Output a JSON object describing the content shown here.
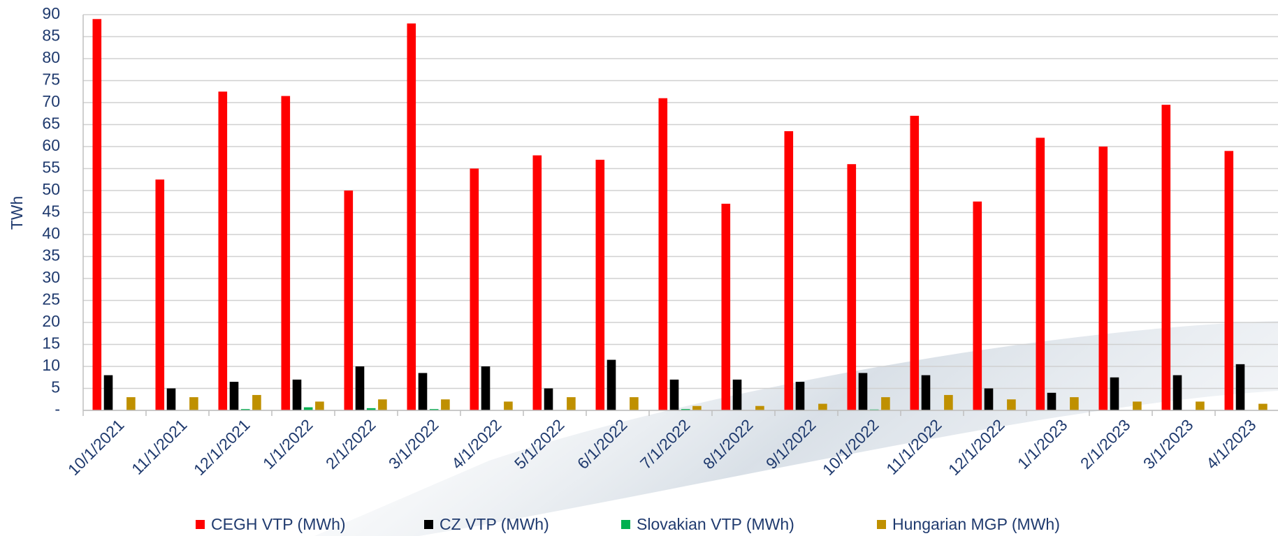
{
  "chart_data": {
    "type": "bar",
    "y_label": "TWh",
    "categories": [
      "10/1/2021",
      "11/1/2021",
      "12/1/2021",
      "1/1/2022",
      "2/1/2022",
      "3/1/2022",
      "4/1/2022",
      "5/1/2022",
      "6/1/2022",
      "7/1/2022",
      "8/1/2022",
      "9/1/2022",
      "10/1/2022",
      "11/1/2022",
      "12/1/2022",
      "1/1/2023",
      "2/1/2023",
      "3/1/2023",
      "4/1/2023"
    ],
    "series": [
      {
        "name": "CEGH VTP (MWh)",
        "color": "#ff0000",
        "values": [
          89,
          52.5,
          72.5,
          71.5,
          50,
          88,
          55,
          58,
          57,
          71,
          47,
          63.5,
          56,
          67,
          47.5,
          62,
          60,
          69.5,
          59
        ]
      },
      {
        "name": "CZ VTP (MWh)",
        "color": "#000000",
        "values": [
          8,
          5,
          6.5,
          7,
          10,
          8.5,
          10,
          5,
          11.5,
          7,
          7,
          6.5,
          8.5,
          8,
          5,
          4,
          7.5,
          8,
          10.5
        ]
      },
      {
        "name": "Slovakian VTP (MWh)",
        "color": "#00b050",
        "values": [
          0,
          0,
          0.3,
          0.7,
          0.5,
          0.3,
          0,
          0,
          0,
          0.3,
          0,
          0,
          0.2,
          0,
          0,
          0,
          0,
          0,
          0
        ]
      },
      {
        "name": "Hungarian MGP (MWh)",
        "color": "#bf9000",
        "values": [
          3,
          3,
          3.5,
          2,
          2.5,
          2.5,
          2,
          3,
          3,
          1,
          1,
          1.5,
          3,
          3.5,
          2.5,
          3,
          2,
          2,
          1.5
        ]
      }
    ],
    "ylim": [
      0,
      90
    ],
    "yticks": [
      {
        "value": 0,
        "label": "-"
      },
      5,
      10,
      15,
      20,
      25,
      30,
      35,
      40,
      45,
      50,
      55,
      60,
      65,
      70,
      75,
      80,
      85,
      90
    ],
    "grid": true,
    "legend": "bottom"
  }
}
